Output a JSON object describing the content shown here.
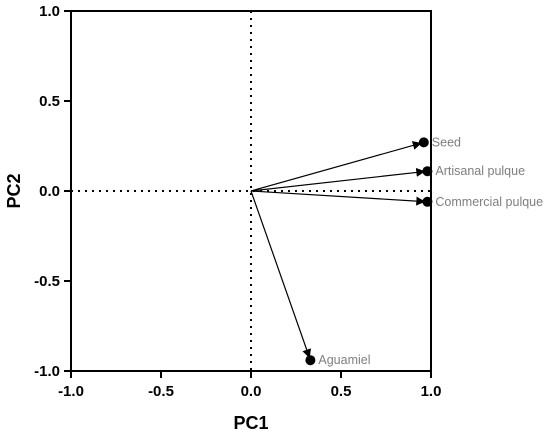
{
  "chart_data": {
    "type": "biplot",
    "xlabel": "PC1",
    "ylabel": "PC2",
    "xlim": [
      -1.0,
      1.0
    ],
    "ylim": [
      -1.0,
      1.0
    ],
    "x_ticks": [
      "-1.0",
      "-0.5",
      "0.0",
      "0.5",
      "1.0"
    ],
    "y_ticks": [
      "-1.0",
      "-0.5",
      "0.0",
      "0.5",
      "1.0"
    ],
    "grid": false,
    "zero_lines": "dotted",
    "origin": [
      0,
      0
    ],
    "points": [
      {
        "label": "Seed",
        "x": 0.96,
        "y": 0.27
      },
      {
        "label": "Artisanal pulque",
        "x": 0.98,
        "y": 0.11
      },
      {
        "label": "Commercial pulque",
        "x": 0.98,
        "y": -0.06
      },
      {
        "label": "Aguamiel",
        "x": 0.33,
        "y": -0.94
      }
    ],
    "colors": {
      "axis": "#000000",
      "arrow": "#000000",
      "point_label": "#7f7f7f"
    }
  }
}
